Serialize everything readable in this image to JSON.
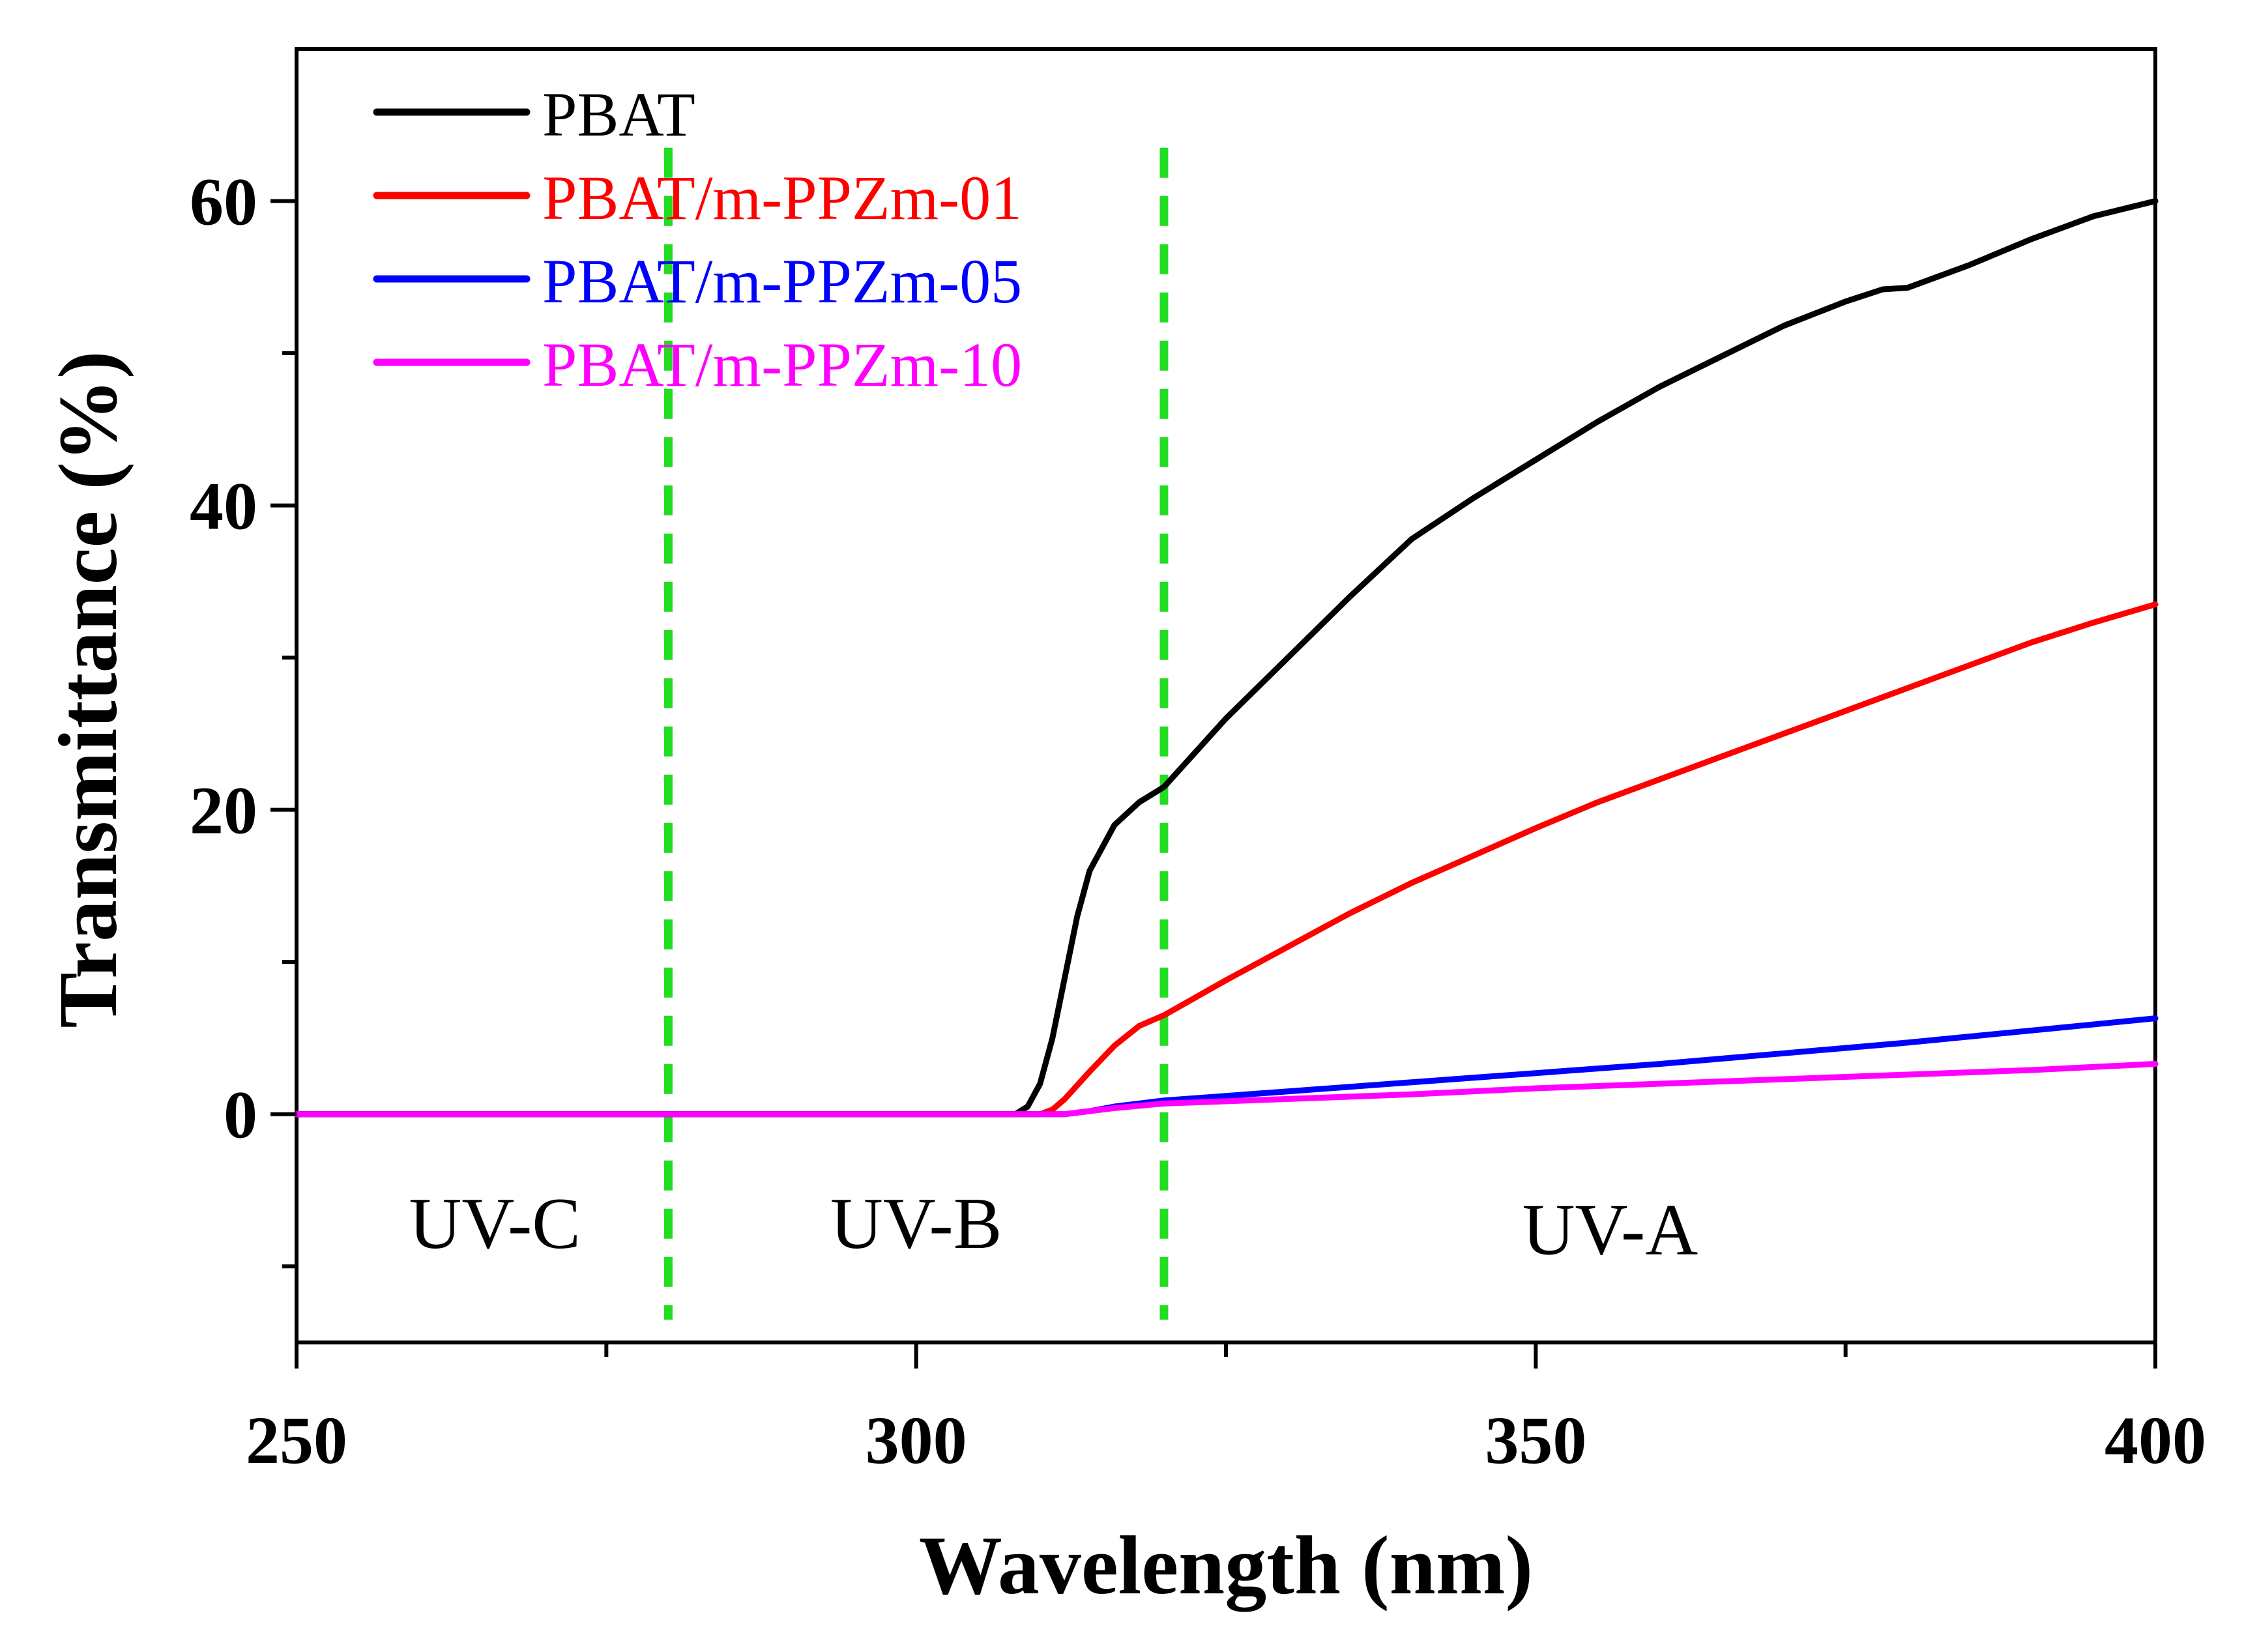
{
  "chart_data": {
    "type": "line",
    "title": "",
    "xlabel": "Wavelength (nm)",
    "ylabel": "Transmittance (%)",
    "xlim": [
      250,
      400
    ],
    "ylim": [
      -15,
      70
    ],
    "x_ticks": [
      250,
      300,
      350,
      400
    ],
    "x_tick_labels": [
      "250",
      "300",
      "350",
      "400"
    ],
    "y_ticks": [
      0,
      20,
      40,
      60
    ],
    "y_tick_labels": [
      "0",
      "20",
      "40",
      "60"
    ],
    "grid": false,
    "legend_position": "top-left",
    "series": [
      {
        "name": "PBAT",
        "color": "#000000",
        "points": [
          [
            250,
            0
          ],
          [
            300,
            0
          ],
          [
            308,
            0
          ],
          [
            309,
            0.5
          ],
          [
            310,
            2
          ],
          [
            311,
            5
          ],
          [
            312,
            9
          ],
          [
            313,
            13
          ],
          [
            314,
            16
          ],
          [
            316,
            19
          ],
          [
            318,
            20.5
          ],
          [
            320,
            21.5
          ],
          [
            325,
            26
          ],
          [
            330,
            30
          ],
          [
            335,
            34
          ],
          [
            340,
            37.8
          ],
          [
            345,
            40.5
          ],
          [
            350,
            43
          ],
          [
            355,
            45.5
          ],
          [
            360,
            47.8
          ],
          [
            365,
            49.8
          ],
          [
            370,
            51.8
          ],
          [
            375,
            53.4
          ],
          [
            378,
            54.2
          ],
          [
            380,
            54.3
          ],
          [
            385,
            55.8
          ],
          [
            390,
            57.5
          ],
          [
            395,
            59
          ],
          [
            400,
            60
          ]
        ]
      },
      {
        "name": "PBAT/m-PPZm-01",
        "color": "#ff0000",
        "points": [
          [
            250,
            0
          ],
          [
            300,
            0
          ],
          [
            310,
            0
          ],
          [
            311,
            0.3
          ],
          [
            312,
            1
          ],
          [
            314,
            2.8
          ],
          [
            316,
            4.5
          ],
          [
            318,
            5.8
          ],
          [
            320,
            6.5
          ],
          [
            325,
            8.8
          ],
          [
            330,
            11
          ],
          [
            335,
            13.2
          ],
          [
            340,
            15.2
          ],
          [
            345,
            17
          ],
          [
            350,
            18.8
          ],
          [
            355,
            20.5
          ],
          [
            360,
            22
          ],
          [
            365,
            23.5
          ],
          [
            370,
            25
          ],
          [
            375,
            26.5
          ],
          [
            380,
            28
          ],
          [
            385,
            29.5
          ],
          [
            390,
            31
          ],
          [
            395,
            32.3
          ],
          [
            400,
            33.5
          ]
        ]
      },
      {
        "name": "PBAT/m-PPZm-05",
        "color": "#0000ff",
        "points": [
          [
            250,
            0
          ],
          [
            300,
            0
          ],
          [
            312,
            0
          ],
          [
            314,
            0.2
          ],
          [
            316,
            0.5
          ],
          [
            320,
            0.9
          ],
          [
            330,
            1.5
          ],
          [
            340,
            2.1
          ],
          [
            350,
            2.7
          ],
          [
            360,
            3.3
          ],
          [
            370,
            4
          ],
          [
            380,
            4.7
          ],
          [
            390,
            5.5
          ],
          [
            400,
            6.3
          ]
        ]
      },
      {
        "name": "PBAT/m-PPZm-10",
        "color": "#ff00ff",
        "points": [
          [
            250,
            0
          ],
          [
            300,
            0
          ],
          [
            312,
            0
          ],
          [
            314,
            0.2
          ],
          [
            316,
            0.4
          ],
          [
            320,
            0.7
          ],
          [
            330,
            1
          ],
          [
            340,
            1.3
          ],
          [
            350,
            1.7
          ],
          [
            360,
            2
          ],
          [
            370,
            2.3
          ],
          [
            380,
            2.6
          ],
          [
            390,
            2.9
          ],
          [
            400,
            3.3
          ]
        ]
      }
    ],
    "dividers": [
      {
        "x": 280,
        "color": "#22dd22"
      },
      {
        "x": 320,
        "color": "#22dd22"
      }
    ],
    "regions": [
      {
        "label": "UV-C",
        "x": 266,
        "y": -8.8
      },
      {
        "label": "UV-B",
        "x": 300,
        "y": -8.8
      },
      {
        "label": "UV-A",
        "x": 356,
        "y": -9.2
      }
    ]
  }
}
